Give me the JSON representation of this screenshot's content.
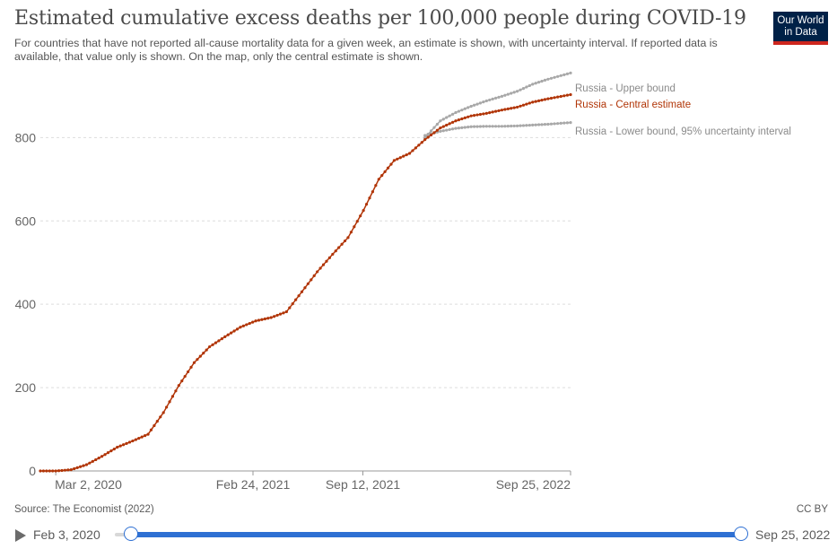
{
  "header": {
    "title": "Estimated cumulative excess deaths per 100,000 people during COVID-19",
    "subtitle": "For countries that have not reported all-cause mortality data for a given week, an estimate is shown, with uncertainty interval. If reported data is available, that value only is shown. On the map, only the central estimate is shown.",
    "logo_line1": "Our World",
    "logo_line2": "in Data"
  },
  "footer": {
    "source": "Source: The Economist (2022)",
    "license": "CC BY"
  },
  "timeline": {
    "start_label": "Feb 3, 2020",
    "end_label": "Sep 25, 2022",
    "play_icon": "play-icon"
  },
  "chart_data": {
    "type": "line",
    "title": "Estimated cumulative excess deaths per 100,000 people during COVID-19",
    "xlabel": "",
    "ylabel": "",
    "ylim": [
      0,
      960
    ],
    "yticks": [
      0,
      200,
      400,
      600,
      800
    ],
    "xticks": [
      "Mar 2, 2020",
      "Feb 24, 2021",
      "Sep 12, 2021",
      "Sep 25, 2022"
    ],
    "xrange": [
      "2020-02-03",
      "2022-09-25"
    ],
    "grid": "horizontal dashed",
    "legend": "inline labels at right end of lines",
    "colors": {
      "central": "#b13507",
      "bounds": "#a8a8a8"
    },
    "series": [
      {
        "name": "Russia - Central estimate",
        "color": "#b13507",
        "points": [
          [
            "2020-02-03",
            0
          ],
          [
            "2020-03-02",
            0
          ],
          [
            "2020-03-30",
            3
          ],
          [
            "2020-04-27",
            15
          ],
          [
            "2020-05-25",
            35
          ],
          [
            "2020-06-22",
            57
          ],
          [
            "2020-07-20",
            72
          ],
          [
            "2020-08-17",
            88
          ],
          [
            "2020-09-14",
            140
          ],
          [
            "2020-10-12",
            205
          ],
          [
            "2020-11-09",
            260
          ],
          [
            "2020-12-07",
            298
          ],
          [
            "2021-01-04",
            322
          ],
          [
            "2021-02-01",
            345
          ],
          [
            "2021-03-01",
            360
          ],
          [
            "2021-03-29",
            368
          ],
          [
            "2021-04-26",
            382
          ],
          [
            "2021-05-24",
            430
          ],
          [
            "2021-06-21",
            478
          ],
          [
            "2021-07-19",
            520
          ],
          [
            "2021-08-16",
            560
          ],
          [
            "2021-09-13",
            625
          ],
          [
            "2021-10-11",
            700
          ],
          [
            "2021-11-08",
            745
          ],
          [
            "2021-12-06",
            762
          ],
          [
            "2022-01-03",
            795
          ],
          [
            "2022-01-31",
            823
          ],
          [
            "2022-02-28",
            840
          ],
          [
            "2022-03-28",
            852
          ],
          [
            "2022-04-25",
            858
          ],
          [
            "2022-05-23",
            866
          ],
          [
            "2022-06-20",
            873
          ],
          [
            "2022-07-18",
            885
          ],
          [
            "2022-08-15",
            893
          ],
          [
            "2022-09-25",
            903
          ]
        ]
      },
      {
        "name": "Russia - Upper bound",
        "color": "#a8a8a8",
        "points": [
          [
            "2022-01-03",
            800
          ],
          [
            "2022-01-31",
            840
          ],
          [
            "2022-02-28",
            860
          ],
          [
            "2022-03-28",
            875
          ],
          [
            "2022-04-25",
            888
          ],
          [
            "2022-05-23",
            899
          ],
          [
            "2022-06-20",
            911
          ],
          [
            "2022-07-18",
            928
          ],
          [
            "2022-08-15",
            940
          ],
          [
            "2022-09-25",
            955
          ]
        ]
      },
      {
        "name": "Russia - Lower bound, 95% uncertainty interval",
        "color": "#a8a8a8",
        "points": [
          [
            "2022-01-03",
            805
          ],
          [
            "2022-01-31",
            815
          ],
          [
            "2022-02-28",
            822
          ],
          [
            "2022-03-28",
            826
          ],
          [
            "2022-04-25",
            827
          ],
          [
            "2022-05-23",
            827
          ],
          [
            "2022-06-20",
            828
          ],
          [
            "2022-07-18",
            830
          ],
          [
            "2022-08-15",
            832
          ],
          [
            "2022-09-25",
            836
          ]
        ]
      }
    ]
  }
}
